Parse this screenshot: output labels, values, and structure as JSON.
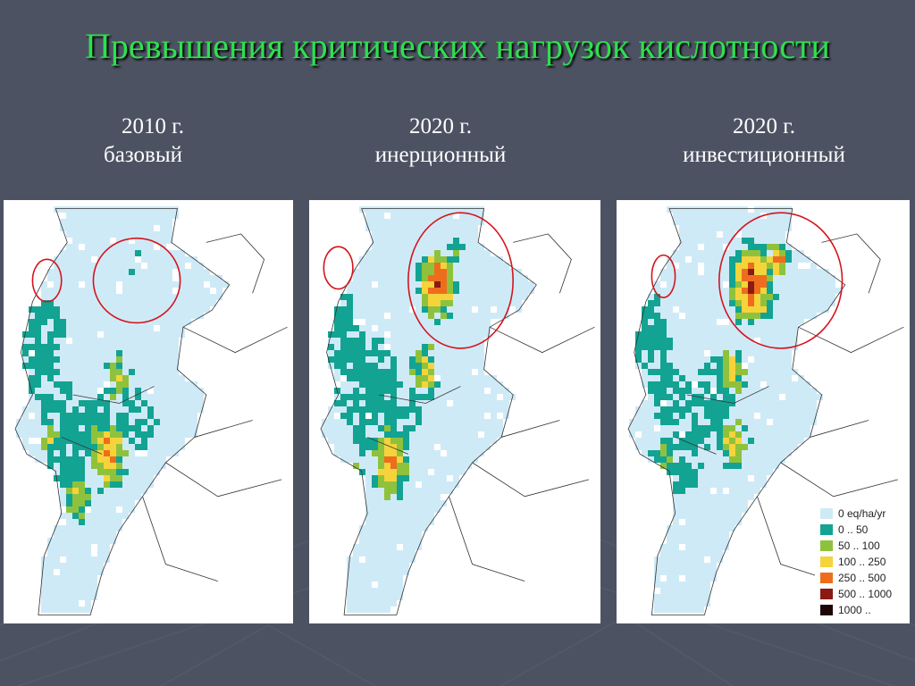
{
  "slide": {
    "title": "Превышения критических нагрузок кислотности"
  },
  "maps": [
    {
      "year": "2010 г.",
      "scenario": "базовый"
    },
    {
      "year": "2020 г.",
      "scenario": "инерционный"
    },
    {
      "year": "2020 г.",
      "scenario": "инвестиционный"
    }
  ],
  "legend": {
    "items": [
      {
        "label": "0 eq/ha/yr",
        "color": "#cfeaf7"
      },
      {
        "label": "0 .. 50",
        "color": "#12a392"
      },
      {
        "label": "50 .. 100",
        "color": "#8fc23c"
      },
      {
        "label": "100 .. 250",
        "color": "#f5d33b"
      },
      {
        "label": "250 .. 500",
        "color": "#ee6d1d"
      },
      {
        "label": "500 .. 1000",
        "color": "#8a1a12"
      },
      {
        "label": "1000 ..",
        "color": "#1e0606"
      }
    ]
  },
  "colors": {
    "background": "#4d5263",
    "title": "#2ee04f",
    "highlight_circle": "#d4141c"
  }
}
